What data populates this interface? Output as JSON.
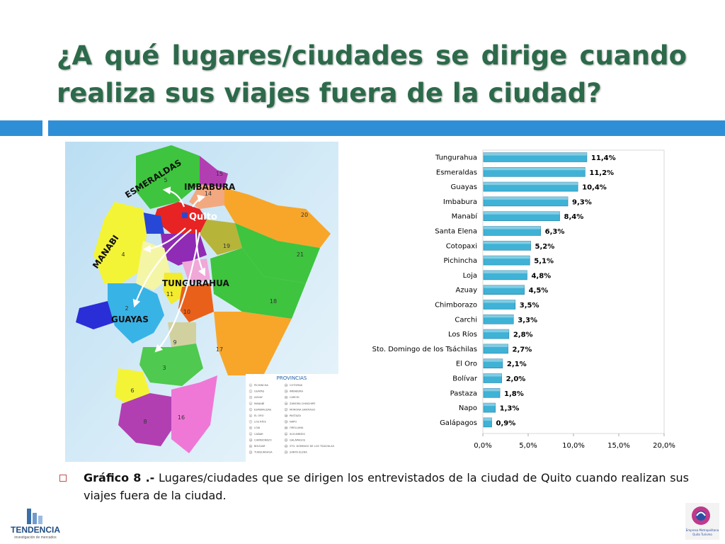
{
  "slide": {
    "title": "¿A qué lugares/ciudades se dirige cuando realiza sus viajes fuera de la ciudad?",
    "caption_label": "Gráfico 8 .-",
    "caption_text": " Lugares/ciudades que se dirigen los entrevistados de la ciudad de Quito cuando realizan sus viajes fuera de la ciudad.",
    "accent_color": "#2e8fd6",
    "title_color": "#2c6a4a"
  },
  "map": {
    "labels": {
      "esmeraldas": "ESMERALDAS",
      "imbabura": "IMBABURA",
      "quito": "Quito",
      "manabi": "MANABI",
      "tungurahua": "TUNGURAHUA",
      "guayas": "GUAYAS"
    },
    "numbers": [
      "5",
      "15",
      "14",
      "20",
      "4",
      "19",
      "21",
      "11",
      "10",
      "18",
      "2",
      "9",
      "17",
      "3",
      "6",
      "8",
      "16",
      "1",
      "12",
      "13",
      "7",
      "22",
      "23",
      "24"
    ],
    "legend_title": "PROVINCIAS",
    "legend_left": [
      "PICHINCHA",
      "GUAYAS",
      "AZUAY",
      "MANABÍ",
      "ESMERALDAS",
      "EL ORO",
      "LOS RÍOS",
      "LOJA",
      "CAÑAR",
      "CHIMBORAZO",
      "BOLÍVAR",
      "TUNGURAHUA"
    ],
    "legend_right": [
      "COTOPAXI",
      "IMBABURA",
      "CARCHI",
      "ZAMORA CHINCHIPE",
      "MORONA SANTIAGO",
      "PASTAZA",
      "NAPO",
      "ORELLANA",
      "SUCUMBÍOS",
      "GALÁPAGOS",
      "STO. DOMINGO DE LOS TSÁCHILAS",
      "SANTA ELENA"
    ]
  },
  "logos": {
    "left_name": "TENDENCIA",
    "left_tagline": "investigación de mercados",
    "right_name": "Empresa Metropolitana Quito Turismo"
  },
  "chart_data": {
    "type": "bar",
    "orientation": "horizontal",
    "categories": [
      "Tungurahua",
      "Esmeraldas",
      "Guayas",
      "Imbabura",
      "Manabí",
      "Santa Elena",
      "Cotopaxi",
      "Pichincha",
      "Loja",
      "Azuay",
      "Chimborazo",
      "Carchi",
      "Los Ríos",
      "Sto. Domingo de los Tsáchilas",
      "El Oro",
      "Bolívar",
      "Pastaza",
      "Napo",
      "Galápagos"
    ],
    "values": [
      11.4,
      11.2,
      10.4,
      9.3,
      8.4,
      6.3,
      5.2,
      5.1,
      4.8,
      4.5,
      3.5,
      3.3,
      2.8,
      2.7,
      2.1,
      2.0,
      1.8,
      1.3,
      0.9
    ],
    "value_labels": [
      "11,4%",
      "11,2%",
      "10,4%",
      "9,3%",
      "8,4%",
      "6,3%",
      "5,2%",
      "5,1%",
      "4,8%",
      "4,5%",
      "3,5%",
      "3,3%",
      "2,8%",
      "2,7%",
      "2,1%",
      "2,0%",
      "1,8%",
      "1,3%",
      "0,9%"
    ],
    "xlim": [
      0,
      20
    ],
    "xticks": [
      "0,0%",
      "5,0%",
      "10,0%",
      "15,0%",
      "20,0%"
    ],
    "grid": false,
    "bar_color": "#3fb2d6"
  }
}
